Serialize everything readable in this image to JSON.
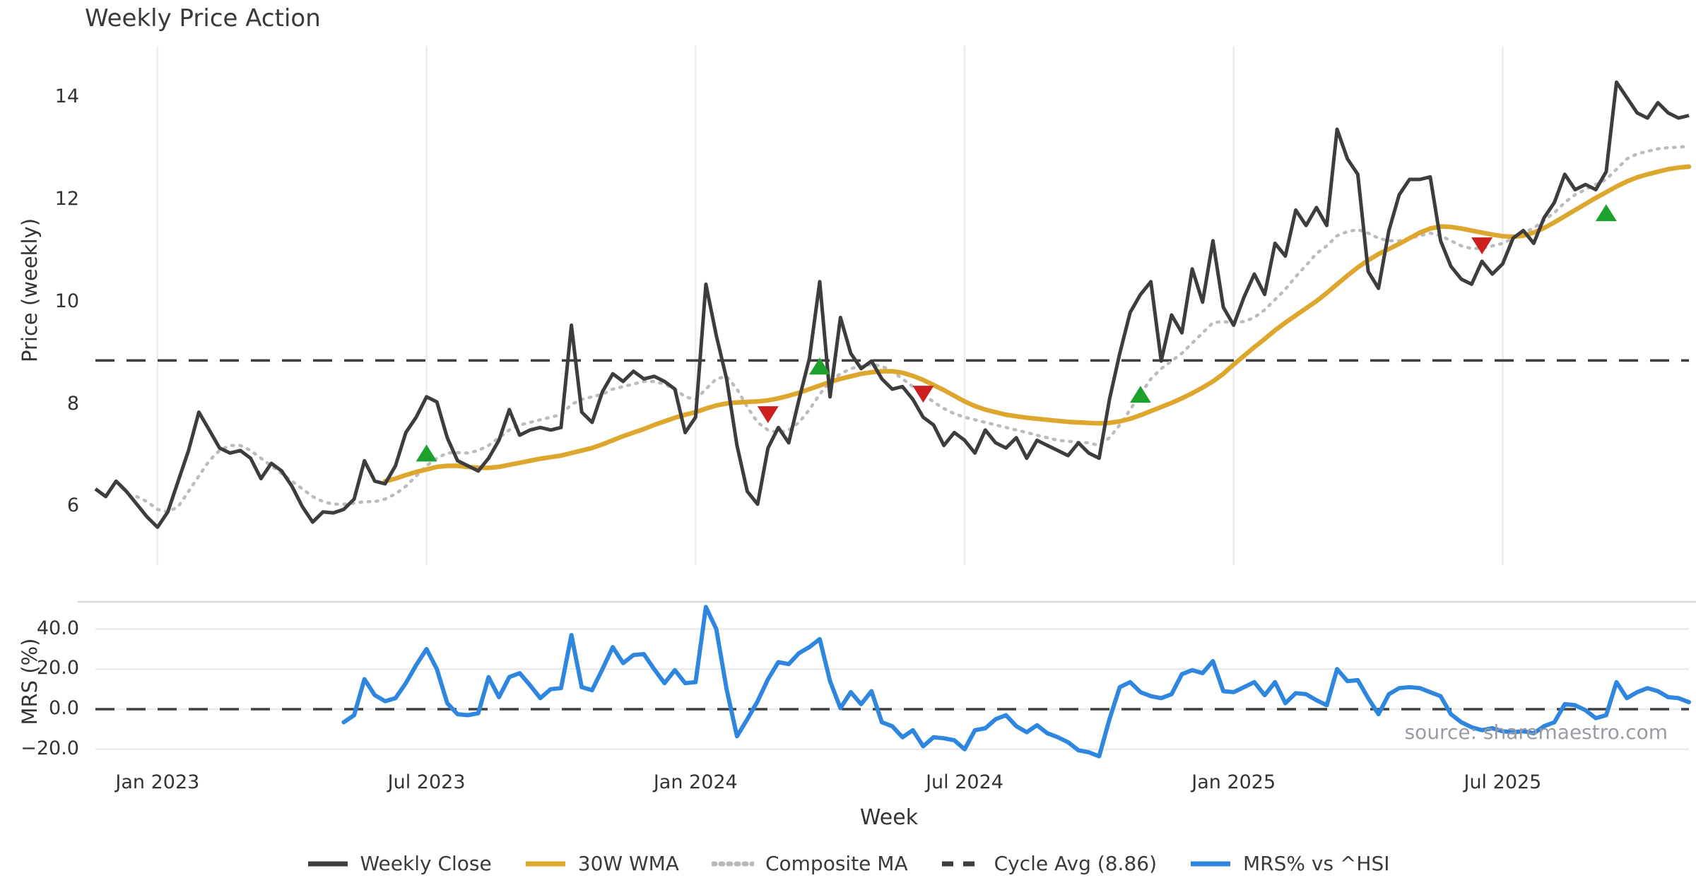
{
  "title": "Weekly Price Action",
  "xlabel": "Week",
  "source_note": "source: sharemaestro.com",
  "colors": {
    "close": "#3d3d3d",
    "wma": "#dda62c",
    "composite": "#bcbcbc",
    "cycle": "#404040",
    "mrs": "#2e86df",
    "buy_marker": "#1ca12e",
    "sell_marker": "#cc2020",
    "grid_vertical": "#ececf1",
    "grid_horizontal": "#e9e9ee",
    "panel_border": "#d9d9e0",
    "tick_text": "#333333",
    "source_text": "#9a9aa2"
  },
  "legend": {
    "items": [
      {
        "style": "solid",
        "color": "#3d3d3d",
        "label": "Weekly Close"
      },
      {
        "style": "solid",
        "color": "#dda62c",
        "label": "30W WMA"
      },
      {
        "style": "dotted",
        "color": "#b9b9b9",
        "label": "Composite MA"
      },
      {
        "style": "dashed",
        "color": "#3d3d3d",
        "label": "Cycle Avg (8.86)"
      },
      {
        "style": "solid",
        "color": "#2e86df",
        "label": "MRS% vs ^HSI"
      }
    ]
  },
  "chart_data": {
    "type": "line",
    "panels": [
      {
        "name": "price",
        "ylabel": "Price (weekly)",
        "ylim": [
          4.86,
          15.01
        ],
        "grid": "vertical",
        "yticks": [
          {
            "v": 14,
            "label": "14"
          },
          {
            "v": 12,
            "label": "12"
          },
          {
            "v": 10,
            "label": "10"
          },
          {
            "v": 8,
            "label": "8"
          },
          {
            "v": 6,
            "label": "6"
          }
        ]
      },
      {
        "name": "mrs",
        "ylabel": "MRS (%)",
        "ylim": [
          -25.2,
          53.6
        ],
        "grid": "horizontal",
        "yticks": [
          {
            "v": 40,
            "label": "40.0"
          },
          {
            "v": 20,
            "label": "20.0"
          },
          {
            "v": 0,
            "label": "0.0"
          },
          {
            "v": -20,
            "label": "−20.0"
          }
        ]
      }
    ],
    "x_unit": "week_index",
    "weeks_count": 155,
    "xticks": [
      {
        "i": 6,
        "label": "Jan 2023"
      },
      {
        "i": 32,
        "label": "Jul 2023"
      },
      {
        "i": 58,
        "label": "Jan 2024"
      },
      {
        "i": 84,
        "label": "Jul 2024"
      },
      {
        "i": 110,
        "label": "Jan 2025"
      },
      {
        "i": 136,
        "label": "Jul 2025"
      }
    ],
    "cycle_avg": 8.86,
    "series": [
      {
        "name": "Weekly Close",
        "panel": "price",
        "values": [
          6.35,
          6.2,
          6.5,
          6.3,
          6.05,
          5.8,
          5.6,
          5.9,
          6.5,
          7.1,
          7.85,
          7.5,
          7.15,
          7.05,
          7.1,
          6.95,
          6.55,
          6.85,
          6.7,
          6.4,
          6.0,
          5.7,
          5.9,
          5.88,
          5.95,
          6.15,
          6.9,
          6.5,
          6.45,
          6.8,
          7.45,
          7.75,
          8.15,
          8.05,
          7.35,
          6.9,
          6.8,
          6.7,
          6.95,
          7.3,
          7.9,
          7.4,
          7.5,
          7.55,
          7.5,
          7.55,
          9.55,
          7.85,
          7.65,
          8.25,
          8.6,
          8.45,
          8.65,
          8.5,
          8.55,
          8.45,
          8.3,
          7.45,
          7.75,
          10.35,
          9.35,
          8.5,
          7.2,
          6.3,
          6.05,
          7.15,
          7.55,
          7.25,
          8.1,
          8.9,
          10.4,
          8.15,
          9.7,
          9.0,
          8.7,
          8.85,
          8.5,
          8.3,
          8.35,
          8.1,
          7.75,
          7.6,
          7.2,
          7.45,
          7.3,
          7.05,
          7.5,
          7.25,
          7.15,
          7.35,
          6.95,
          7.3,
          7.2,
          7.1,
          7.0,
          7.25,
          7.05,
          6.95,
          8.1,
          9.0,
          9.8,
          10.15,
          10.4,
          8.85,
          9.75,
          9.4,
          10.65,
          10.0,
          11.2,
          9.9,
          9.55,
          10.1,
          10.55,
          10.15,
          11.15,
          10.9,
          11.8,
          11.5,
          11.85,
          11.5,
          13.38,
          12.8,
          12.5,
          10.6,
          10.27,
          11.4,
          12.1,
          12.4,
          12.4,
          12.45,
          11.2,
          10.7,
          10.45,
          10.35,
          10.8,
          10.55,
          10.75,
          11.25,
          11.4,
          11.15,
          11.65,
          11.95,
          12.5,
          12.2,
          12.3,
          12.2,
          12.55,
          14.3,
          14.0,
          13.7,
          13.6,
          13.9,
          13.7,
          13.6,
          13.65
        ]
      },
      {
        "name": "30W WMA",
        "panel": "price",
        "values": [
          null,
          null,
          null,
          null,
          null,
          null,
          null,
          null,
          null,
          null,
          null,
          null,
          null,
          null,
          null,
          null,
          null,
          null,
          null,
          null,
          null,
          null,
          null,
          null,
          null,
          null,
          null,
          null,
          6.5,
          6.55,
          6.62,
          6.68,
          6.73,
          6.78,
          6.8,
          6.8,
          6.78,
          6.76,
          6.76,
          6.78,
          6.82,
          6.86,
          6.9,
          6.94,
          6.97,
          7.0,
          7.05,
          7.1,
          7.15,
          7.22,
          7.3,
          7.38,
          7.45,
          7.52,
          7.6,
          7.67,
          7.74,
          7.8,
          7.85,
          7.92,
          7.98,
          8.02,
          8.04,
          8.05,
          8.06,
          8.08,
          8.12,
          8.17,
          8.23,
          8.3,
          8.37,
          8.44,
          8.5,
          8.55,
          8.6,
          8.63,
          8.65,
          8.65,
          8.62,
          8.56,
          8.48,
          8.38,
          8.28,
          8.17,
          8.06,
          7.97,
          7.9,
          7.85,
          7.8,
          7.77,
          7.74,
          7.72,
          7.7,
          7.68,
          7.66,
          7.65,
          7.64,
          7.63,
          7.64,
          7.67,
          7.72,
          7.79,
          7.87,
          7.95,
          8.03,
          8.12,
          8.22,
          8.33,
          8.45,
          8.6,
          8.78,
          8.95,
          9.12,
          9.28,
          9.45,
          9.6,
          9.74,
          9.88,
          10.02,
          10.18,
          10.35,
          10.52,
          10.68,
          10.82,
          10.94,
          11.04,
          11.14,
          11.25,
          11.36,
          11.44,
          11.48,
          11.47,
          11.44,
          11.4,
          11.36,
          11.32,
          11.29,
          11.28,
          11.3,
          11.36,
          11.45,
          11.56,
          11.68,
          11.8,
          11.92,
          12.04,
          12.15,
          12.26,
          12.36,
          12.44,
          12.5,
          12.55,
          12.6,
          12.63,
          12.65
        ]
      },
      {
        "name": "Composite MA",
        "panel": "price",
        "values": [
          null,
          null,
          null,
          null,
          6.2,
          6.1,
          5.95,
          5.9,
          6.0,
          6.3,
          6.6,
          6.9,
          7.1,
          7.2,
          7.2,
          7.1,
          6.95,
          6.8,
          6.65,
          6.5,
          6.35,
          6.2,
          6.1,
          6.05,
          6.05,
          6.07,
          6.1,
          6.1,
          6.15,
          6.25,
          6.4,
          6.6,
          6.8,
          6.95,
          7.05,
          7.06,
          7.05,
          7.1,
          7.2,
          7.35,
          7.5,
          7.6,
          7.65,
          7.7,
          7.75,
          7.8,
          8.0,
          8.1,
          8.15,
          8.2,
          8.3,
          8.35,
          8.4,
          8.45,
          8.45,
          8.4,
          8.3,
          8.15,
          8.1,
          8.3,
          8.5,
          8.55,
          8.3,
          7.95,
          7.65,
          7.5,
          7.45,
          7.5,
          7.65,
          7.9,
          8.2,
          8.45,
          8.6,
          8.7,
          8.75,
          8.78,
          8.75,
          8.65,
          8.5,
          8.35,
          8.2,
          8.05,
          7.92,
          7.82,
          7.75,
          7.7,
          7.65,
          7.6,
          7.55,
          7.5,
          7.45,
          7.4,
          7.35,
          7.3,
          7.28,
          7.26,
          7.25,
          7.2,
          7.35,
          7.6,
          7.9,
          8.2,
          8.5,
          8.7,
          8.85,
          9.0,
          9.2,
          9.4,
          9.6,
          9.62,
          9.6,
          9.62,
          9.7,
          9.85,
          10.05,
          10.25,
          10.5,
          10.72,
          10.95,
          11.1,
          11.3,
          11.38,
          11.42,
          11.35,
          11.25,
          11.2,
          11.2,
          11.25,
          11.3,
          11.35,
          11.3,
          11.2,
          11.1,
          11.05,
          11.05,
          11.1,
          11.15,
          11.25,
          11.35,
          11.45,
          11.6,
          11.75,
          11.95,
          12.1,
          12.2,
          12.3,
          12.4,
          12.6,
          12.8,
          12.9,
          12.95,
          13.0,
          13.02,
          13.03,
          13.05
        ]
      },
      {
        "name": "MRS% vs ^HSI",
        "panel": "mrs",
        "values": [
          null,
          null,
          null,
          null,
          null,
          null,
          null,
          null,
          null,
          null,
          null,
          null,
          null,
          null,
          null,
          null,
          null,
          null,
          null,
          null,
          null,
          null,
          null,
          null,
          -6.5,
          -3.0,
          15.0,
          7.0,
          4.0,
          5.5,
          13.0,
          22.0,
          30.0,
          20.0,
          3.0,
          -2.5,
          -3.0,
          -2.0,
          16.0,
          6.0,
          16.0,
          18.0,
          12.0,
          5.5,
          10.0,
          10.5,
          37.0,
          11.0,
          9.5,
          20.0,
          31.0,
          23.0,
          27.0,
          27.5,
          20.0,
          13.0,
          19.5,
          13.0,
          13.5,
          51.0,
          40.0,
          10.0,
          -13.5,
          -5.0,
          4.0,
          15.0,
          23.5,
          22.5,
          28.0,
          31.0,
          35.0,
          14.0,
          0.5,
          8.5,
          2.5,
          9.0,
          -6.5,
          -8.5,
          -14.0,
          -10.5,
          -18.5,
          -14.0,
          -14.5,
          -15.5,
          -20.0,
          -10.5,
          -9.5,
          -5.0,
          -3.0,
          -8.5,
          -11.5,
          -8.0,
          -12.0,
          -14.0,
          -16.5,
          -20.5,
          -21.5,
          -23.5,
          -5.0,
          11.0,
          13.5,
          8.5,
          6.5,
          5.5,
          7.5,
          17.5,
          19.5,
          18.0,
          24.0,
          9.0,
          8.5,
          11.0,
          13.5,
          7.0,
          13.5,
          3.0,
          8.0,
          7.5,
          4.5,
          2.0,
          20.0,
          14.0,
          14.5,
          5.5,
          -2.5,
          7.5,
          10.5,
          11.0,
          10.5,
          8.5,
          6.5,
          -2.5,
          -6.5,
          -9.0,
          -10.5,
          -9.5,
          -11.0,
          -11.5,
          -11.0,
          -12.0,
          -8.5,
          -6.5,
          2.5,
          2.0,
          -0.5,
          -4.5,
          -3.0,
          13.5,
          5.5,
          8.5,
          10.5,
          9.0,
          6.0,
          5.5,
          3.5
        ]
      }
    ],
    "markers": {
      "buy": [
        {
          "i": 32,
          "v": 7.05
        },
        {
          "i": 70,
          "v": 8.75
        },
        {
          "i": 101,
          "v": 8.2
        },
        {
          "i": 146,
          "v": 11.75
        }
      ],
      "sell": [
        {
          "i": 65,
          "v": 7.8
        },
        {
          "i": 80,
          "v": 8.2
        },
        {
          "i": 134,
          "v": 11.1
        }
      ]
    }
  }
}
